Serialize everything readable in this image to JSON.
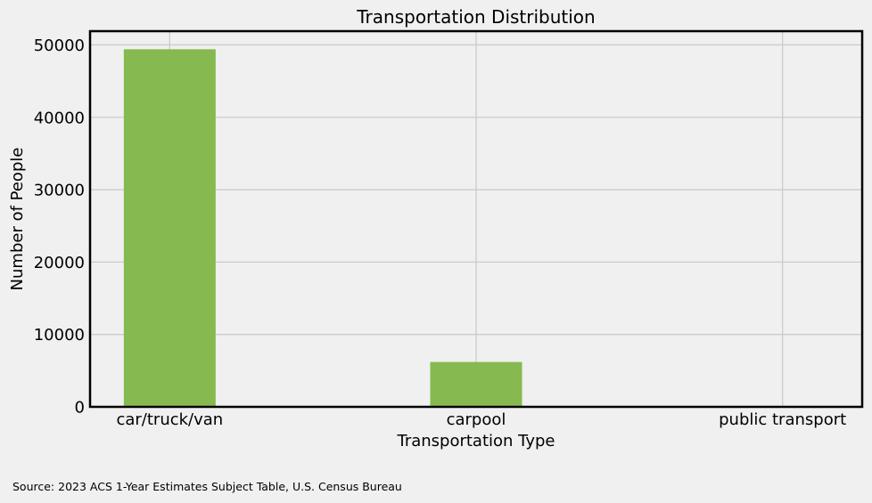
{
  "chart_data": {
    "type": "bar",
    "title": "Transportation Distribution",
    "xlabel": "Transportation Type",
    "ylabel": "Number of People",
    "categories": [
      "car/truck/van",
      "carpool",
      "public transport"
    ],
    "values": [
      49400,
      6200,
      0
    ],
    "ylim": [
      0,
      51900
    ],
    "yticks": [
      0,
      10000,
      20000,
      30000,
      40000,
      50000
    ],
    "ytick_labels": [
      "0",
      "10000",
      "20000",
      "30000",
      "40000",
      "50000"
    ],
    "grid": true,
    "legend": "none",
    "colors": {
      "bar": "#86b94f",
      "grid": "#cbcbcb",
      "background": "#f0f0f0",
      "axis": "#000000"
    }
  },
  "source_note": "Source: 2023 ACS 1-Year Estimates Subject Table, U.S. Census Bureau"
}
